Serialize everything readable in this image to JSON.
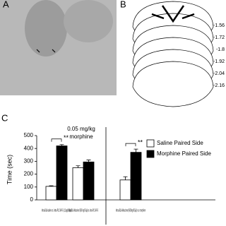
{
  "panels": {
    "a": "A",
    "b": "B",
    "c": "C"
  },
  "section_levels": [
    "-1.56",
    "-1.72",
    "-1.8",
    "-1.92",
    "-2.04",
    "-2.16"
  ],
  "chart_data": {
    "type": "bar",
    "title": "0.05 mg/kg",
    "subtitle": "morphine",
    "y_label": "Time (sec)",
    "categories": [
      "Intra-BLA saline vs. Intra-PLC AP-5 (1.0µg/0.5µl)",
      "Intra-BLA Muscimol (500 ng/0.5µl) vs. intra-PLC AP-5",
      "Intra-BLA Muscimol (500ng/0.5µl) vs. morphine"
    ],
    "series": [
      {
        "name": "Saline Paired Side",
        "color": "#ffffff",
        "values": [
          105,
          250,
          155
        ],
        "errors": [
          5,
          15,
          25
        ]
      },
      {
        "name": "Morphine Paired Side",
        "color": "#000000",
        "values": [
          420,
          295,
          370
        ],
        "errors": [
          10,
          15,
          25
        ]
      }
    ],
    "annotations": [
      "**",
      "**"
    ],
    "ylim": [
      0,
      500
    ],
    "yticks": [
      0,
      100,
      200,
      300,
      400,
      500
    ],
    "legend": "upper right"
  }
}
